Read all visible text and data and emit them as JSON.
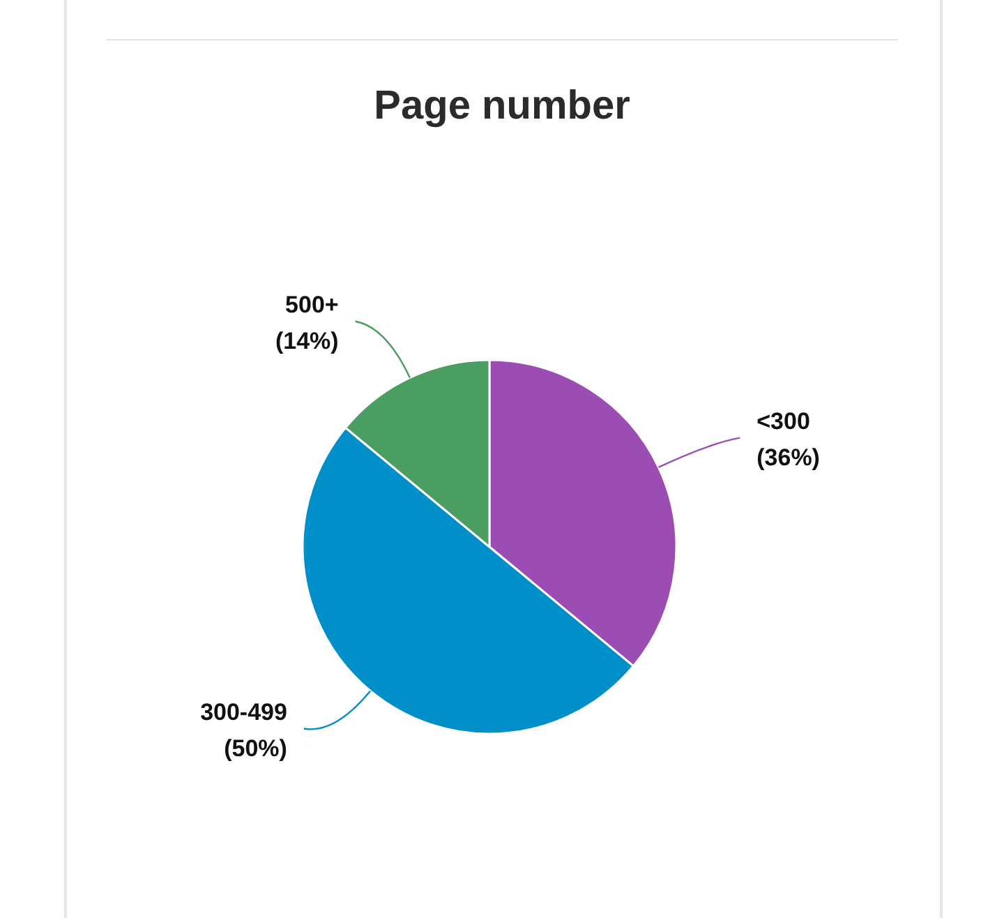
{
  "chart_data": {
    "type": "pie",
    "title": "Page number",
    "categories": [
      "<300",
      "300-499",
      "500+"
    ],
    "values": [
      36,
      50,
      14
    ],
    "value_labels": [
      "(36%)",
      "(50%)",
      "(14%)"
    ],
    "colors": [
      "#9b4db3",
      "#008fc9",
      "#4a9e62"
    ],
    "legend": false
  }
}
